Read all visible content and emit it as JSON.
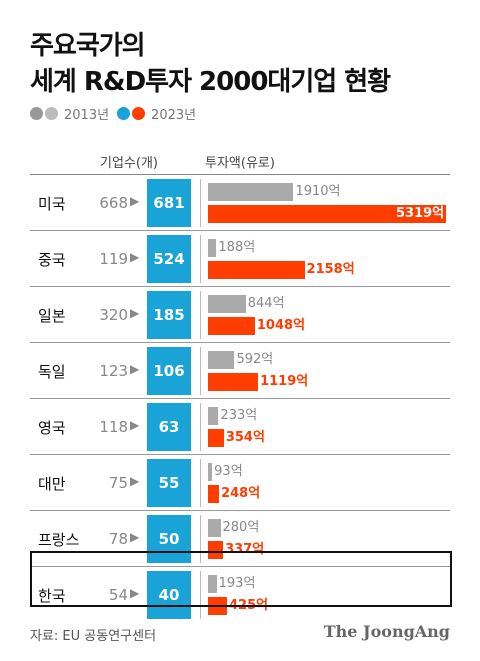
{
  "title_line1": "주요국가의",
  "title_line2": "세계 R&D투자 2000대기업 현황",
  "legend": [
    {
      "label": "2013년",
      "colors": [
        "#999999",
        "#bbbbbb"
      ]
    },
    {
      "label": "2023년",
      "colors": [
        "#1aa3d6",
        "#ff3d00"
      ]
    }
  ],
  "header_count": "기업수(개)",
  "header_invest": "투자액(유로)",
  "source": "자료: EU 공동연구센터",
  "brand": "The JoongAng",
  "chart_data": {
    "type": "bar",
    "series_labels": [
      "2013년",
      "2023년"
    ],
    "rows": [
      {
        "country": "미국",
        "count_2013": "668",
        "count_2023": "681",
        "invest_2013": 1910,
        "invest_2023": 5319,
        "invest_2013_label": "1910억",
        "invest_2023_label": "5319억",
        "highlight": false
      },
      {
        "country": "중국",
        "count_2013": "119",
        "count_2023": "524",
        "invest_2013": 188,
        "invest_2023": 2158,
        "invest_2013_label": "188억",
        "invest_2023_label": "2158억",
        "highlight": false
      },
      {
        "country": "일본",
        "count_2013": "320",
        "count_2023": "185",
        "invest_2013": 844,
        "invest_2023": 1048,
        "invest_2013_label": "844억",
        "invest_2023_label": "1048억",
        "highlight": false
      },
      {
        "country": "독일",
        "count_2013": "123",
        "count_2023": "106",
        "invest_2013": 592,
        "invest_2023": 1119,
        "invest_2013_label": "592억",
        "invest_2023_label": "1119억",
        "highlight": false
      },
      {
        "country": "영국",
        "count_2013": "118",
        "count_2023": "63",
        "invest_2013": 233,
        "invest_2023": 354,
        "invest_2013_label": "233억",
        "invest_2023_label": "354억",
        "highlight": false
      },
      {
        "country": "대만",
        "count_2013": "75",
        "count_2023": "55",
        "invest_2013": 93,
        "invest_2023": 248,
        "invest_2013_label": "93억",
        "invest_2023_label": "248억",
        "highlight": false
      },
      {
        "country": "프랑스",
        "count_2013": "78",
        "count_2023": "50",
        "invest_2013": 280,
        "invest_2023": 337,
        "invest_2013_label": "280억",
        "invest_2023_label": "337억",
        "highlight": false
      },
      {
        "country": "한국",
        "count_2013": "54",
        "count_2023": "40",
        "invest_2013": 193,
        "invest_2023": 425,
        "invest_2013_label": "193억",
        "invest_2023_label": "425억",
        "highlight": true
      }
    ],
    "colors": {
      "bar_2013": "#aaaaaa",
      "bar_2023": "#ff3d00",
      "count_2023_box": "#1aa3d6"
    }
  }
}
